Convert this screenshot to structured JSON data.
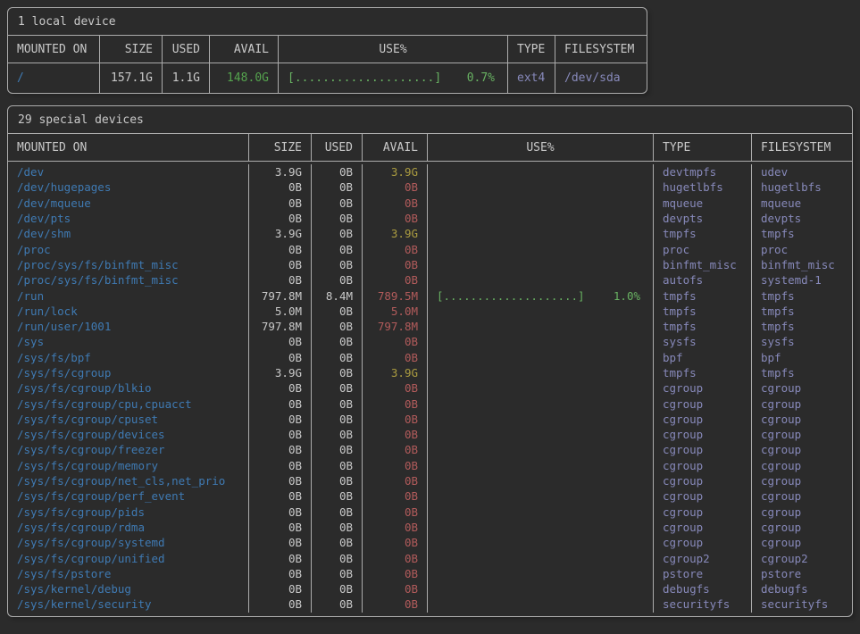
{
  "colors": {
    "background": "#2b2b2b",
    "border": "#acacac",
    "text": "#c9c9c9",
    "mount_blue": "#3f7ab3",
    "avail_green": "#55a44e",
    "avail_yellow": "#ab9c40",
    "avail_red": "#b25b5b",
    "usage_green": "#68b162",
    "type_purple": "#8789ba"
  },
  "local_table": {
    "title": "1 local device",
    "headers": [
      "MOUNTED ON",
      "SIZE",
      "USED",
      "AVAIL",
      "USE%",
      "TYPE",
      "FILESYSTEM"
    ],
    "rows": [
      {
        "mount": "/",
        "size": "157.1G",
        "used": "1.1G",
        "avail": "148.0G",
        "avail_level": "green",
        "bar": "[....................]",
        "pct": "0.7%",
        "type": "ext4",
        "fs": "/dev/sda"
      }
    ]
  },
  "special_table": {
    "title": "29 special devices",
    "headers": [
      "MOUNTED ON",
      "SIZE",
      "USED",
      "AVAIL",
      "USE%",
      "TYPE",
      "FILESYSTEM"
    ],
    "rows": [
      {
        "mount": "/dev",
        "size": "3.9G",
        "used": "0B",
        "avail": "3.9G",
        "avail_level": "yellow",
        "bar": "",
        "pct": "",
        "type": "devtmpfs",
        "fs": "udev"
      },
      {
        "mount": "/dev/hugepages",
        "size": "0B",
        "used": "0B",
        "avail": "0B",
        "avail_level": "red",
        "bar": "",
        "pct": "",
        "type": "hugetlbfs",
        "fs": "hugetlbfs"
      },
      {
        "mount": "/dev/mqueue",
        "size": "0B",
        "used": "0B",
        "avail": "0B",
        "avail_level": "red",
        "bar": "",
        "pct": "",
        "type": "mqueue",
        "fs": "mqueue"
      },
      {
        "mount": "/dev/pts",
        "size": "0B",
        "used": "0B",
        "avail": "0B",
        "avail_level": "red",
        "bar": "",
        "pct": "",
        "type": "devpts",
        "fs": "devpts"
      },
      {
        "mount": "/dev/shm",
        "size": "3.9G",
        "used": "0B",
        "avail": "3.9G",
        "avail_level": "yellow",
        "bar": "",
        "pct": "",
        "type": "tmpfs",
        "fs": "tmpfs"
      },
      {
        "mount": "/proc",
        "size": "0B",
        "used": "0B",
        "avail": "0B",
        "avail_level": "red",
        "bar": "",
        "pct": "",
        "type": "proc",
        "fs": "proc"
      },
      {
        "mount": "/proc/sys/fs/binfmt_misc",
        "size": "0B",
        "used": "0B",
        "avail": "0B",
        "avail_level": "red",
        "bar": "",
        "pct": "",
        "type": "binfmt_misc",
        "fs": "binfmt_misc"
      },
      {
        "mount": "/proc/sys/fs/binfmt_misc",
        "size": "0B",
        "used": "0B",
        "avail": "0B",
        "avail_level": "red",
        "bar": "",
        "pct": "",
        "type": "autofs",
        "fs": "systemd-1"
      },
      {
        "mount": "/run",
        "size": "797.8M",
        "used": "8.4M",
        "avail": "789.5M",
        "avail_level": "red",
        "bar": "[....................]",
        "pct": "1.0%",
        "type": "tmpfs",
        "fs": "tmpfs"
      },
      {
        "mount": "/run/lock",
        "size": "5.0M",
        "used": "0B",
        "avail": "5.0M",
        "avail_level": "red",
        "bar": "",
        "pct": "",
        "type": "tmpfs",
        "fs": "tmpfs"
      },
      {
        "mount": "/run/user/1001",
        "size": "797.8M",
        "used": "0B",
        "avail": "797.8M",
        "avail_level": "red",
        "bar": "",
        "pct": "",
        "type": "tmpfs",
        "fs": "tmpfs"
      },
      {
        "mount": "/sys",
        "size": "0B",
        "used": "0B",
        "avail": "0B",
        "avail_level": "red",
        "bar": "",
        "pct": "",
        "type": "sysfs",
        "fs": "sysfs"
      },
      {
        "mount": "/sys/fs/bpf",
        "size": "0B",
        "used": "0B",
        "avail": "0B",
        "avail_level": "red",
        "bar": "",
        "pct": "",
        "type": "bpf",
        "fs": "bpf"
      },
      {
        "mount": "/sys/fs/cgroup",
        "size": "3.9G",
        "used": "0B",
        "avail": "3.9G",
        "avail_level": "yellow",
        "bar": "",
        "pct": "",
        "type": "tmpfs",
        "fs": "tmpfs"
      },
      {
        "mount": "/sys/fs/cgroup/blkio",
        "size": "0B",
        "used": "0B",
        "avail": "0B",
        "avail_level": "red",
        "bar": "",
        "pct": "",
        "type": "cgroup",
        "fs": "cgroup"
      },
      {
        "mount": "/sys/fs/cgroup/cpu,cpuacct",
        "size": "0B",
        "used": "0B",
        "avail": "0B",
        "avail_level": "red",
        "bar": "",
        "pct": "",
        "type": "cgroup",
        "fs": "cgroup"
      },
      {
        "mount": "/sys/fs/cgroup/cpuset",
        "size": "0B",
        "used": "0B",
        "avail": "0B",
        "avail_level": "red",
        "bar": "",
        "pct": "",
        "type": "cgroup",
        "fs": "cgroup"
      },
      {
        "mount": "/sys/fs/cgroup/devices",
        "size": "0B",
        "used": "0B",
        "avail": "0B",
        "avail_level": "red",
        "bar": "",
        "pct": "",
        "type": "cgroup",
        "fs": "cgroup"
      },
      {
        "mount": "/sys/fs/cgroup/freezer",
        "size": "0B",
        "used": "0B",
        "avail": "0B",
        "avail_level": "red",
        "bar": "",
        "pct": "",
        "type": "cgroup",
        "fs": "cgroup"
      },
      {
        "mount": "/sys/fs/cgroup/memory",
        "size": "0B",
        "used": "0B",
        "avail": "0B",
        "avail_level": "red",
        "bar": "",
        "pct": "",
        "type": "cgroup",
        "fs": "cgroup"
      },
      {
        "mount": "/sys/fs/cgroup/net_cls,net_prio",
        "size": "0B",
        "used": "0B",
        "avail": "0B",
        "avail_level": "red",
        "bar": "",
        "pct": "",
        "type": "cgroup",
        "fs": "cgroup"
      },
      {
        "mount": "/sys/fs/cgroup/perf_event",
        "size": "0B",
        "used": "0B",
        "avail": "0B",
        "avail_level": "red",
        "bar": "",
        "pct": "",
        "type": "cgroup",
        "fs": "cgroup"
      },
      {
        "mount": "/sys/fs/cgroup/pids",
        "size": "0B",
        "used": "0B",
        "avail": "0B",
        "avail_level": "red",
        "bar": "",
        "pct": "",
        "type": "cgroup",
        "fs": "cgroup"
      },
      {
        "mount": "/sys/fs/cgroup/rdma",
        "size": "0B",
        "used": "0B",
        "avail": "0B",
        "avail_level": "red",
        "bar": "",
        "pct": "",
        "type": "cgroup",
        "fs": "cgroup"
      },
      {
        "mount": "/sys/fs/cgroup/systemd",
        "size": "0B",
        "used": "0B",
        "avail": "0B",
        "avail_level": "red",
        "bar": "",
        "pct": "",
        "type": "cgroup",
        "fs": "cgroup"
      },
      {
        "mount": "/sys/fs/cgroup/unified",
        "size": "0B",
        "used": "0B",
        "avail": "0B",
        "avail_level": "red",
        "bar": "",
        "pct": "",
        "type": "cgroup2",
        "fs": "cgroup2"
      },
      {
        "mount": "/sys/fs/pstore",
        "size": "0B",
        "used": "0B",
        "avail": "0B",
        "avail_level": "red",
        "bar": "",
        "pct": "",
        "type": "pstore",
        "fs": "pstore"
      },
      {
        "mount": "/sys/kernel/debug",
        "size": "0B",
        "used": "0B",
        "avail": "0B",
        "avail_level": "red",
        "bar": "",
        "pct": "",
        "type": "debugfs",
        "fs": "debugfs"
      },
      {
        "mount": "/sys/kernel/security",
        "size": "0B",
        "used": "0B",
        "avail": "0B",
        "avail_level": "red",
        "bar": "",
        "pct": "",
        "type": "securityfs",
        "fs": "securityfs"
      }
    ]
  }
}
